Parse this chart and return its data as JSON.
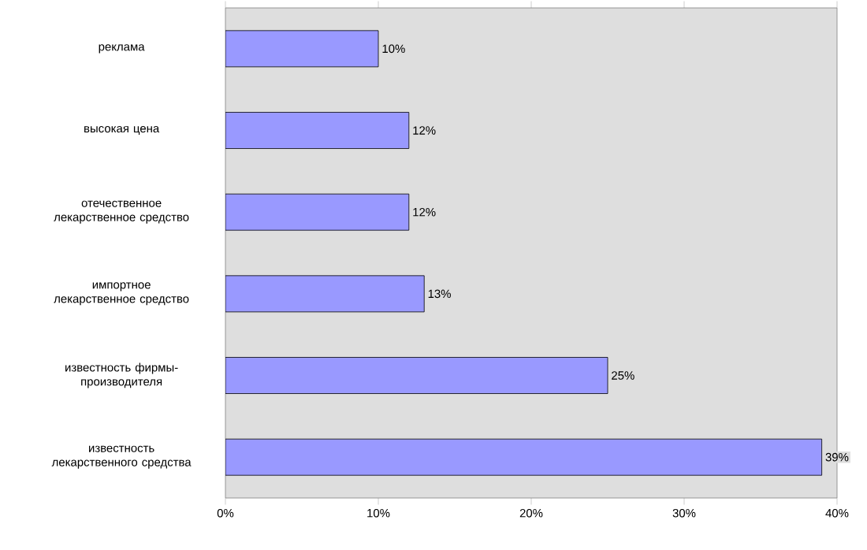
{
  "chart_data": {
    "type": "bar",
    "orientation": "horizontal",
    "categories": [
      "реклама",
      "высокая цена",
      "отечественное лекарственное средство",
      "импортное лекарственное средство",
      "известность фирмы-производителя",
      "известность лекарственного средства"
    ],
    "values": [
      10,
      12,
      12,
      13,
      25,
      39
    ],
    "value_labels": [
      "10%",
      "12%",
      "12%",
      "13%",
      "25%",
      "39%"
    ],
    "color": "#9999ff",
    "xlim": [
      0,
      40
    ],
    "xticks": [
      {
        "value": 0,
        "label": "0%"
      },
      {
        "value": 10,
        "label": "10%"
      },
      {
        "value": 20,
        "label": "20%"
      },
      {
        "value": 30,
        "label": "30%"
      },
      {
        "value": 40,
        "label": "40%"
      }
    ],
    "grid": false
  }
}
